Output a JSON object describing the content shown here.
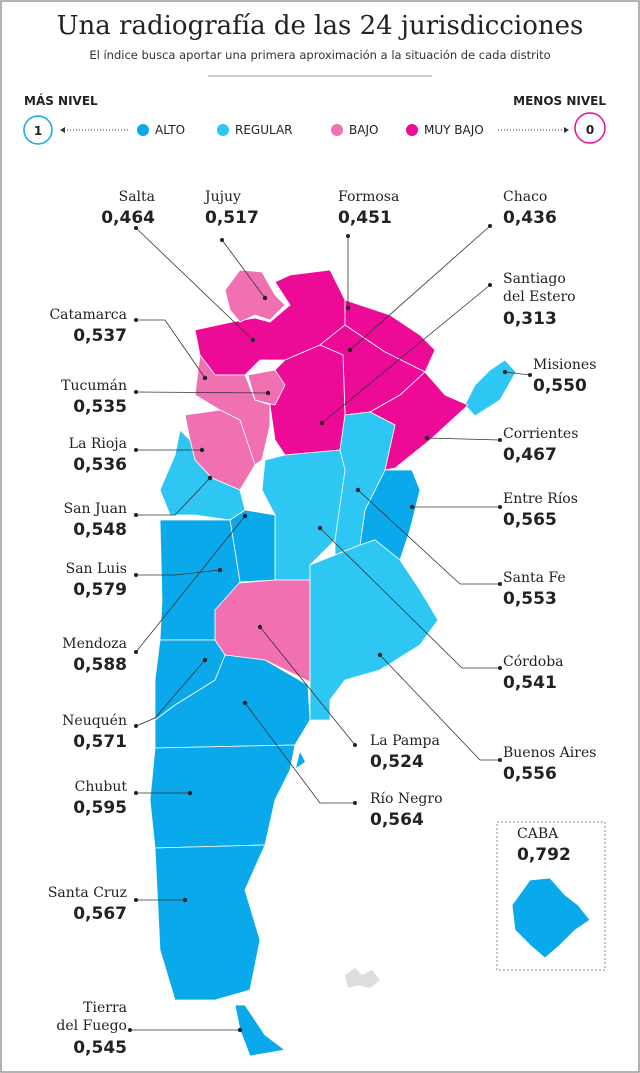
{
  "header": {
    "title": "Una radiografía de las 24 jurisdicciones",
    "subtitle": "El índice busca aportar una primera aproximación a la situación de cada distrito"
  },
  "legend": {
    "high_label": "MÁS NIVEL",
    "high_value": "1",
    "low_label": "MENOS NIVEL",
    "low_value": "0",
    "items": [
      {
        "label": "ALTO",
        "color": "#0aa9ec"
      },
      {
        "label": "REGULAR",
        "color": "#2ec6f3"
      },
      {
        "label": "BAJO",
        "color": "#f070b2"
      },
      {
        "label": "MUY BAJO",
        "color": "#ec0a97"
      }
    ]
  },
  "provinces": [
    {
      "name": "Salta",
      "value": "0,464",
      "color": "#ec0a97"
    },
    {
      "name": "Jujuy",
      "value": "0,517",
      "color": "#f070b2"
    },
    {
      "name": "Formosa",
      "value": "0,451",
      "color": "#ec0a97"
    },
    {
      "name": "Chaco",
      "value": "0,436",
      "color": "#ec0a97"
    },
    {
      "name": "Santiago del Estero",
      "value": "0,313",
      "color": "#ec0a97"
    },
    {
      "name": "Misiones",
      "value": "0,550",
      "color": "#2ec6f3"
    },
    {
      "name": "Corrientes",
      "value": "0,467",
      "color": "#ec0a97"
    },
    {
      "name": "Entre Ríos",
      "value": "0,565",
      "color": "#0aa9ec"
    },
    {
      "name": "Santa Fe",
      "value": "0,553",
      "color": "#2ec6f3"
    },
    {
      "name": "Córdoba",
      "value": "0,541",
      "color": "#2ec6f3"
    },
    {
      "name": "Buenos Aires",
      "value": "0,556",
      "color": "#2ec6f3"
    },
    {
      "name": "La Pampa",
      "value": "0,524",
      "color": "#f070b2"
    },
    {
      "name": "Río Negro",
      "value": "0,564",
      "color": "#0aa9ec"
    },
    {
      "name": "Catamarca",
      "value": "0,537",
      "color": "#f070b2"
    },
    {
      "name": "Tucumán",
      "value": "0,535",
      "color": "#f070b2"
    },
    {
      "name": "La Rioja",
      "value": "0,536",
      "color": "#f070b2"
    },
    {
      "name": "San Juan",
      "value": "0,548",
      "color": "#2ec6f3"
    },
    {
      "name": "San Luis",
      "value": "0,579",
      "color": "#0aa9ec"
    },
    {
      "name": "Mendoza",
      "value": "0,588",
      "color": "#0aa9ec"
    },
    {
      "name": "Neuquén",
      "value": "0,571",
      "color": "#0aa9ec"
    },
    {
      "name": "Chubut",
      "value": "0,595",
      "color": "#0aa9ec"
    },
    {
      "name": "Santa Cruz",
      "value": "0,567",
      "color": "#0aa9ec"
    },
    {
      "name": "Tierra del Fuego",
      "value": "0,545",
      "color": "#0aa9ec"
    },
    {
      "name": "CABA",
      "value": "0,792",
      "color": "#0aa9ec"
    }
  ]
}
